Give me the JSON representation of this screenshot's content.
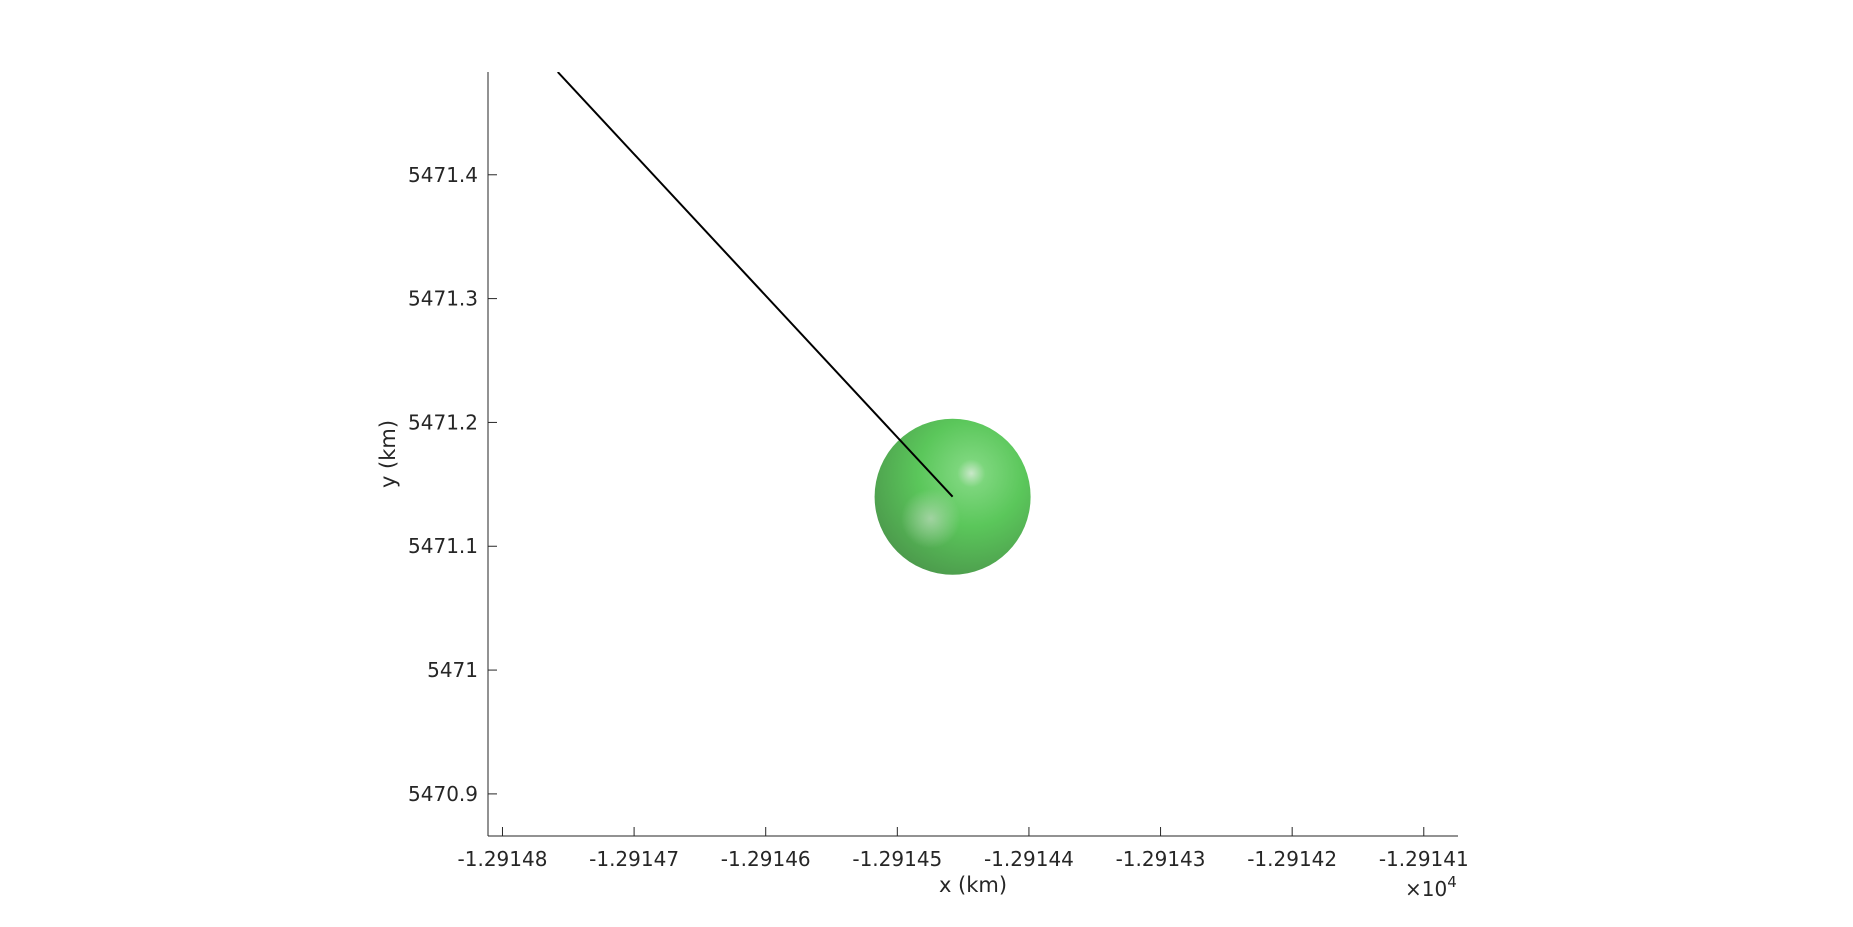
{
  "chart_data": {
    "type": "line",
    "title": "",
    "xlabel": "x (km)",
    "ylabel": "y (km)",
    "x_exponent_label": "×10",
    "x_exponent_power": "4",
    "xlim": [
      -1.2914811,
      -1.2914074
    ],
    "ylim": [
      5470.866,
      5471.483
    ],
    "x_ticks": [
      -1.29148,
      -1.29147,
      -1.29146,
      -1.29145,
      -1.29144,
      -1.29143,
      -1.29142,
      -1.29141
    ],
    "x_tick_labels": [
      "-1.29148",
      "-1.29147",
      "-1.29146",
      "-1.29145",
      "-1.29144",
      "-1.29143",
      "-1.29142",
      "-1.29141"
    ],
    "y_ticks": [
      5470.9,
      5471,
      5471.1,
      5471.2,
      5471.3,
      5471.4
    ],
    "y_tick_labels": [
      "5470.9",
      "5471",
      "5471.1",
      "5471.2",
      "5471.3",
      "5471.4"
    ],
    "grid": false,
    "series": [
      {
        "type": "line",
        "color": "#000000",
        "x": [
          -1.2914758,
          -1.2914458
        ],
        "y": [
          5471.483,
          5471.14
        ]
      }
    ],
    "sphere": {
      "center_x": -1.2914458,
      "center_y": 5471.14,
      "radius_y": 0.063,
      "color": "#5cc85c",
      "shadow_color": "#4a9a4a"
    }
  }
}
